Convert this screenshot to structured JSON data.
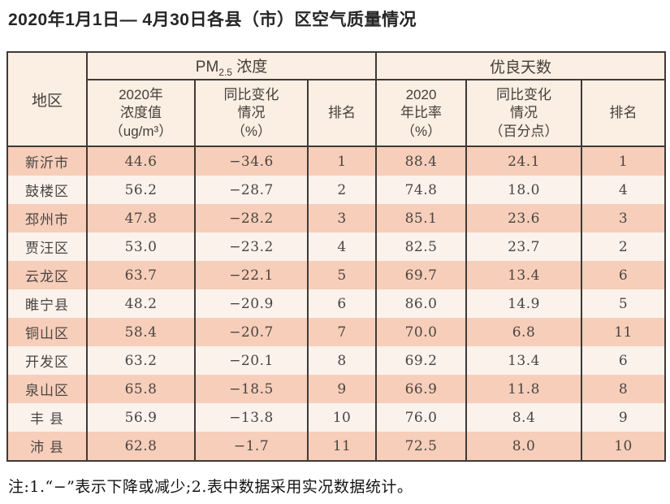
{
  "title": "2020年1月1日— 4月30日各县（市）区空气质量情况",
  "colors": {
    "header_bg": "#fbeee2",
    "row_odd_bg": "#f7ceba",
    "row_even_bg": "#fbf2ec",
    "border": "#3e3a37",
    "text": "#4a4541"
  },
  "table": {
    "headers": {
      "region": "地区",
      "pm_group": {
        "pre": "PM",
        "sub": "2.5",
        "post": " 浓度"
      },
      "good_days_group": "优良天数",
      "pm_value": {
        "l1": "2020年",
        "l2": "浓度值",
        "l3": "（ug/m³）"
      },
      "pm_change": {
        "l1": "同比变化",
        "l2": "情况",
        "l3": "（%）"
      },
      "pm_rank": "排名",
      "ratio": {
        "l1": "2020",
        "l2": "年比率",
        "l3": "（%）"
      },
      "ratio_change": {
        "l1": "同比变化",
        "l2": "情况",
        "l3": "（百分点）"
      },
      "ratio_rank": "排名"
    },
    "rows": [
      {
        "region": "新沂市",
        "pm_value": "44.6",
        "pm_change": "−34.6",
        "pm_rank": "1",
        "ratio": "88.4",
        "ratio_change": "24.1",
        "ratio_rank": "1"
      },
      {
        "region": "鼓楼区",
        "pm_value": "56.2",
        "pm_change": "−28.7",
        "pm_rank": "2",
        "ratio": "74.8",
        "ratio_change": "18.0",
        "ratio_rank": "4"
      },
      {
        "region": "邳州市",
        "pm_value": "47.8",
        "pm_change": "−28.2",
        "pm_rank": "3",
        "ratio": "85.1",
        "ratio_change": "23.6",
        "ratio_rank": "3"
      },
      {
        "region": "贾汪区",
        "pm_value": "53.0",
        "pm_change": "−23.2",
        "pm_rank": "4",
        "ratio": "82.5",
        "ratio_change": "23.7",
        "ratio_rank": "2"
      },
      {
        "region": "云龙区",
        "pm_value": "63.7",
        "pm_change": "−22.1",
        "pm_rank": "5",
        "ratio": "69.7",
        "ratio_change": "13.4",
        "ratio_rank": "6"
      },
      {
        "region": "睢宁县",
        "pm_value": "48.2",
        "pm_change": "−20.9",
        "pm_rank": "6",
        "ratio": "86.0",
        "ratio_change": "14.9",
        "ratio_rank": "5"
      },
      {
        "region": "铜山区",
        "pm_value": "58.4",
        "pm_change": "−20.7",
        "pm_rank": "7",
        "ratio": "70.0",
        "ratio_change": "6.8",
        "ratio_rank": "11"
      },
      {
        "region": "开发区",
        "pm_value": "63.2",
        "pm_change": "−20.1",
        "pm_rank": "8",
        "ratio": "69.2",
        "ratio_change": "13.4",
        "ratio_rank": "6"
      },
      {
        "region": "泉山区",
        "pm_value": "65.8",
        "pm_change": "−18.5",
        "pm_rank": "9",
        "ratio": "66.9",
        "ratio_change": "11.8",
        "ratio_rank": "8"
      },
      {
        "region": "丰 县",
        "pm_value": "56.9",
        "pm_change": "−13.8",
        "pm_rank": "10",
        "ratio": "76.0",
        "ratio_change": "8.4",
        "ratio_rank": "9"
      },
      {
        "region": "沛 县",
        "pm_value": "62.8",
        "pm_change": "−1.7",
        "pm_rank": "11",
        "ratio": "72.5",
        "ratio_change": "8.0",
        "ratio_rank": "10"
      }
    ]
  },
  "footnote": "注:1.“−”表示下降或减少;2.表中数据采用实况数据统计。"
}
